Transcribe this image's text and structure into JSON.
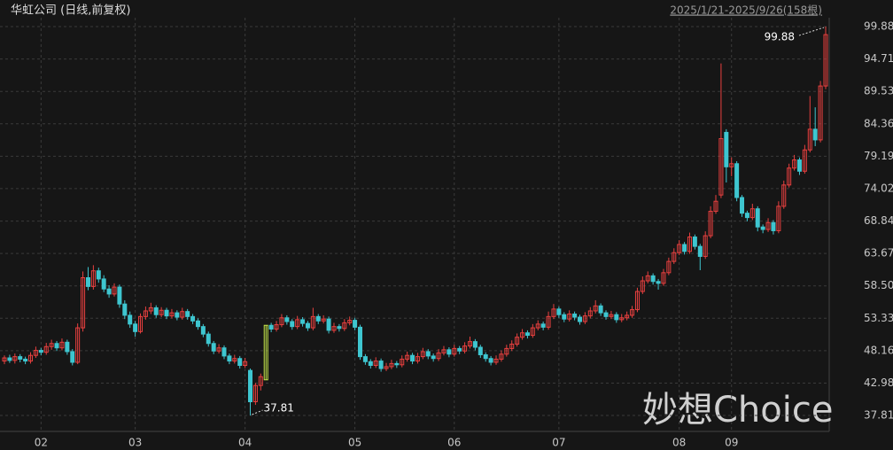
{
  "chart_data": {
    "type": "candlestick",
    "title": "华虹公司 (日线,前复权)",
    "subtitle": "2025/1/21-2025/9/26(158根)",
    "watermark": "妙想Choice",
    "max_label": 99.88,
    "min_label": 37.81,
    "up_color": "#e8403f",
    "down_color": "#3ec6d0",
    "limit_color": "#c8e84a",
    "ylim": [
      35.55,
      101.3
    ],
    "yticks": [
      {
        "value": 37.81,
        "label": "37.81"
      },
      42.98,
      48.16,
      {
        "value": 53.33,
        "label": "53.33"
      },
      {
        "value": 58.5,
        "label": "58.50"
      },
      63.67,
      68.84,
      74.02,
      79.19,
      84.36,
      89.53,
      94.71,
      99.88
    ],
    "grid": true,
    "categories": [
      null,
      null,
      null,
      null,
      null,
      null,
      null,
      "02",
      null,
      null,
      null,
      null,
      null,
      null,
      null,
      null,
      null,
      null,
      null,
      null,
      null,
      null,
      null,
      null,
      null,
      "03",
      null,
      null,
      null,
      null,
      null,
      null,
      null,
      null,
      null,
      null,
      null,
      null,
      null,
      null,
      null,
      null,
      null,
      null,
      null,
      null,
      "04",
      null,
      null,
      null,
      null,
      null,
      null,
      null,
      null,
      null,
      null,
      null,
      null,
      null,
      null,
      null,
      null,
      null,
      null,
      null,
      null,
      "05",
      null,
      null,
      null,
      null,
      null,
      null,
      null,
      null,
      null,
      null,
      null,
      null,
      null,
      null,
      null,
      null,
      null,
      null,
      "06",
      null,
      null,
      null,
      null,
      null,
      null,
      null,
      null,
      null,
      null,
      null,
      null,
      null,
      null,
      null,
      null,
      null,
      null,
      null,
      "07",
      null,
      null,
      null,
      null,
      null,
      null,
      null,
      null,
      null,
      null,
      null,
      null,
      null,
      null,
      null,
      null,
      null,
      null,
      null,
      null,
      null,
      null,
      "08",
      null,
      null,
      null,
      null,
      null,
      null,
      null,
      null,
      null,
      "09",
      null,
      null,
      null,
      null,
      null,
      null,
      null,
      null,
      null,
      null,
      null,
      null,
      null,
      null,
      null,
      null,
      null,
      null
    ],
    "candles": [
      [
        46.5,
        47.4,
        46.0,
        47.0
      ],
      [
        47.0,
        47.5,
        46.2,
        46.6
      ],
      [
        46.6,
        47.7,
        46.1,
        47.2
      ],
      [
        47.2,
        47.6,
        46.3,
        46.8
      ],
      [
        46.8,
        47.2,
        46.0,
        46.5
      ],
      [
        46.5,
        47.9,
        46.1,
        47.4
      ],
      [
        47.4,
        48.8,
        47.0,
        48.2
      ],
      [
        48.2,
        48.6,
        47.4,
        47.9
      ],
      [
        47.9,
        49.4,
        47.5,
        48.8
      ],
      [
        48.8,
        49.9,
        48.3,
        49.3
      ],
      [
        49.3,
        49.7,
        48.1,
        48.6
      ],
      [
        48.6,
        50.1,
        48.2,
        49.5
      ],
      [
        49.5,
        49.9,
        47.5,
        48.0
      ],
      [
        48.0,
        48.4,
        45.8,
        46.3
      ],
      [
        46.3,
        52.5,
        46.0,
        51.8
      ],
      [
        51.8,
        60.8,
        51.2,
        59.8
      ],
      [
        59.8,
        61.5,
        57.8,
        58.4
      ],
      [
        58.4,
        61.8,
        57.9,
        60.9
      ],
      [
        60.9,
        61.4,
        59.0,
        59.6
      ],
      [
        59.6,
        60.2,
        57.5,
        58.0
      ],
      [
        58.0,
        58.6,
        56.6,
        57.2
      ],
      [
        57.2,
        58.9,
        56.8,
        58.3
      ],
      [
        58.3,
        58.7,
        55.0,
        55.6
      ],
      [
        55.6,
        56.2,
        53.2,
        53.8
      ],
      [
        53.8,
        54.4,
        51.8,
        52.4
      ],
      [
        52.4,
        52.9,
        50.4,
        51.2
      ],
      [
        51.2,
        54.1,
        50.9,
        53.6
      ],
      [
        53.6,
        55.2,
        53.1,
        54.5
      ],
      [
        54.5,
        55.8,
        54.0,
        55.0
      ],
      [
        55.0,
        55.4,
        53.4,
        53.9
      ],
      [
        53.9,
        55.1,
        53.5,
        54.6
      ],
      [
        54.6,
        55.0,
        53.2,
        53.7
      ],
      [
        53.7,
        54.8,
        53.3,
        54.2
      ],
      [
        54.2,
        54.6,
        53.0,
        53.5
      ],
      [
        53.5,
        55.0,
        53.1,
        54.4
      ],
      [
        54.4,
        54.8,
        53.1,
        53.6
      ],
      [
        53.6,
        54.0,
        52.4,
        52.9
      ],
      [
        52.9,
        53.3,
        51.5,
        52.0
      ],
      [
        52.0,
        52.4,
        50.3,
        50.8
      ],
      [
        50.8,
        51.2,
        48.8,
        49.3
      ],
      [
        49.3,
        49.7,
        47.6,
        48.1
      ],
      [
        48.1,
        49.2,
        47.7,
        48.6
      ],
      [
        48.6,
        49.0,
        46.8,
        47.3
      ],
      [
        47.3,
        47.7,
        46.0,
        46.5
      ],
      [
        46.5,
        47.5,
        46.1,
        46.9
      ],
      [
        46.9,
        47.3,
        45.3,
        45.8
      ],
      [
        45.8,
        47.0,
        45.4,
        46.4
      ],
      [
        45.0,
        45.3,
        37.81,
        40.0
      ],
      [
        40.0,
        43.0,
        39.5,
        42.6
      ],
      [
        42.6,
        44.5,
        41.8,
        44.0
      ],
      [
        43.5,
        52.2,
        43.5,
        52.2
      ],
      [
        52.2,
        52.6,
        51.1,
        51.6
      ],
      [
        51.6,
        52.9,
        51.2,
        52.3
      ],
      [
        52.3,
        54.0,
        51.9,
        53.4
      ],
      [
        53.4,
        53.8,
        52.3,
        52.8
      ],
      [
        52.8,
        53.2,
        51.5,
        52.0
      ],
      [
        52.0,
        53.7,
        51.6,
        53.1
      ],
      [
        53.1,
        53.5,
        52.0,
        52.5
      ],
      [
        52.5,
        52.9,
        51.3,
        51.8
      ],
      [
        51.8,
        55.0,
        51.4,
        53.6
      ],
      [
        53.6,
        54.0,
        52.4,
        52.9
      ],
      [
        52.9,
        53.8,
        52.5,
        53.2
      ],
      [
        53.2,
        53.6,
        50.9,
        51.4
      ],
      [
        51.4,
        52.6,
        51.0,
        52.0
      ],
      [
        52.0,
        52.4,
        51.2,
        51.7
      ],
      [
        51.7,
        53.2,
        51.3,
        52.6
      ],
      [
        52.6,
        53.6,
        52.2,
        53.0
      ],
      [
        53.0,
        53.4,
        51.4,
        51.9
      ],
      [
        51.9,
        52.3,
        46.7,
        47.2
      ],
      [
        47.2,
        47.6,
        45.9,
        46.4
      ],
      [
        46.4,
        46.8,
        45.3,
        45.8
      ],
      [
        45.8,
        47.1,
        45.4,
        46.5
      ],
      [
        46.5,
        46.9,
        44.8,
        45.3
      ],
      [
        45.3,
        46.2,
        44.9,
        45.6
      ],
      [
        45.6,
        46.7,
        45.2,
        46.1
      ],
      [
        46.1,
        46.5,
        45.4,
        45.9
      ],
      [
        45.9,
        47.4,
        45.5,
        46.8
      ],
      [
        46.8,
        48.0,
        46.4,
        47.4
      ],
      [
        47.4,
        47.8,
        46.0,
        46.5
      ],
      [
        46.5,
        47.8,
        46.1,
        47.2
      ],
      [
        47.2,
        48.6,
        46.8,
        48.0
      ],
      [
        48.0,
        48.4,
        46.8,
        47.3
      ],
      [
        47.3,
        47.7,
        46.4,
        46.9
      ],
      [
        46.9,
        48.4,
        46.5,
        47.8
      ],
      [
        47.8,
        48.9,
        47.4,
        48.3
      ],
      [
        48.3,
        48.7,
        47.1,
        47.6
      ],
      [
        47.6,
        49.1,
        47.2,
        48.5
      ],
      [
        48.5,
        48.9,
        47.6,
        48.1
      ],
      [
        48.1,
        49.5,
        47.7,
        48.9
      ],
      [
        48.9,
        50.4,
        48.5,
        49.6
      ],
      [
        49.6,
        50.0,
        48.2,
        48.7
      ],
      [
        48.7,
        49.1,
        47.0,
        47.5
      ],
      [
        47.5,
        47.9,
        46.4,
        46.9
      ],
      [
        46.9,
        47.3,
        45.8,
        46.3
      ],
      [
        46.3,
        47.4,
        45.9,
        46.8
      ],
      [
        46.8,
        48.2,
        46.4,
        47.6
      ],
      [
        47.6,
        49.1,
        47.2,
        48.5
      ],
      [
        48.5,
        49.8,
        48.1,
        49.2
      ],
      [
        49.2,
        50.9,
        48.8,
        50.3
      ],
      [
        50.3,
        51.6,
        49.9,
        51.0
      ],
      [
        51.0,
        51.4,
        50.1,
        50.6
      ],
      [
        50.6,
        52.4,
        50.2,
        51.8
      ],
      [
        51.8,
        53.0,
        51.4,
        52.4
      ],
      [
        52.4,
        52.8,
        51.4,
        51.9
      ],
      [
        51.9,
        54.4,
        51.5,
        53.6
      ],
      [
        53.6,
        55.6,
        53.2,
        54.8
      ],
      [
        54.8,
        55.2,
        53.4,
        53.9
      ],
      [
        53.9,
        54.3,
        52.7,
        53.2
      ],
      [
        53.2,
        54.6,
        52.8,
        54.0
      ],
      [
        54.0,
        54.4,
        53.0,
        53.5
      ],
      [
        53.5,
        53.9,
        52.3,
        52.8
      ],
      [
        52.8,
        54.3,
        52.4,
        53.7
      ],
      [
        53.7,
        55.1,
        53.3,
        54.5
      ],
      [
        54.5,
        56.2,
        54.1,
        55.3
      ],
      [
        55.3,
        55.7,
        53.7,
        54.2
      ],
      [
        54.2,
        54.6,
        53.1,
        53.6
      ],
      [
        53.6,
        54.5,
        53.2,
        53.9
      ],
      [
        53.9,
        54.3,
        52.6,
        53.1
      ],
      [
        53.1,
        54.0,
        52.7,
        53.4
      ],
      [
        53.4,
        54.4,
        53.0,
        53.8
      ],
      [
        53.8,
        55.3,
        53.4,
        54.7
      ],
      [
        54.7,
        58.2,
        54.3,
        57.6
      ],
      [
        57.6,
        60.0,
        57.2,
        59.3
      ],
      [
        59.3,
        60.8,
        58.9,
        60.1
      ],
      [
        60.1,
        60.5,
        58.7,
        59.2
      ],
      [
        59.2,
        59.6,
        57.9,
        58.9
      ],
      [
        58.9,
        61.2,
        58.5,
        60.6
      ],
      [
        60.6,
        63.0,
        60.2,
        62.4
      ],
      [
        62.4,
        64.5,
        62.0,
        63.8
      ],
      [
        63.8,
        65.8,
        63.4,
        65.1
      ],
      [
        65.1,
        65.5,
        63.5,
        64.0
      ],
      [
        64.0,
        67.0,
        63.6,
        66.3
      ],
      [
        66.3,
        66.7,
        64.3,
        64.8
      ],
      [
        64.8,
        65.2,
        61.0,
        63.2
      ],
      [
        63.2,
        67.2,
        62.8,
        66.5
      ],
      [
        66.5,
        71.2,
        66.1,
        70.4
      ],
      [
        70.4,
        73.0,
        70.0,
        72.0
      ],
      [
        73.0,
        94.0,
        72.5,
        82.0
      ],
      [
        83.0,
        83.5,
        75.0,
        77.5
      ],
      [
        77.5,
        79.0,
        76.0,
        78.0
      ],
      [
        78.0,
        78.4,
        72.0,
        72.6
      ],
      [
        72.6,
        73.0,
        69.5,
        70.1
      ],
      [
        70.1,
        70.5,
        68.8,
        69.4
      ],
      [
        69.4,
        71.6,
        69.0,
        70.8
      ],
      [
        70.8,
        71.2,
        67.2,
        67.9
      ],
      [
        67.9,
        68.3,
        66.9,
        67.5
      ],
      [
        67.5,
        69.3,
        67.1,
        68.6
      ],
      [
        68.6,
        69.0,
        66.7,
        67.3
      ],
      [
        67.3,
        72.0,
        66.9,
        71.2
      ],
      [
        71.2,
        75.3,
        70.8,
        74.6
      ],
      [
        74.6,
        78.0,
        74.2,
        77.3
      ],
      [
        77.3,
        79.4,
        76.9,
        78.6
      ],
      [
        78.6,
        79.0,
        76.2,
        76.8
      ],
      [
        76.8,
        81.0,
        76.4,
        80.2
      ],
      [
        80.2,
        88.8,
        79.8,
        83.5
      ],
      [
        83.5,
        87.0,
        80.8,
        81.8
      ],
      [
        81.8,
        91.2,
        81.4,
        90.4
      ],
      [
        90.4,
        99.88,
        89.9,
        98.6
      ]
    ]
  }
}
